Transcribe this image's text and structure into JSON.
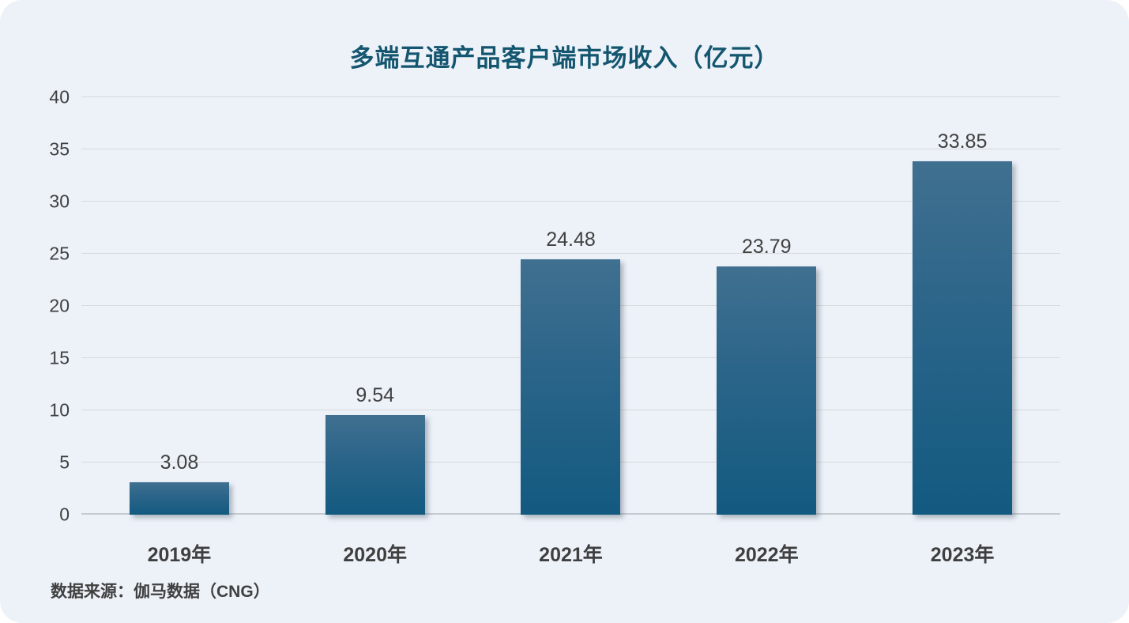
{
  "title": "多端互通产品客户端市场收入（亿元）",
  "source": "数据来源：伽马数据（CNG）",
  "chart_data": {
    "type": "bar",
    "title": "多端互通产品客户端市场收入（亿元）",
    "categories": [
      "2019年",
      "2020年",
      "2021年",
      "2022年",
      "2023年"
    ],
    "values": [
      3.08,
      9.54,
      24.48,
      23.79,
      33.85
    ],
    "data_labels": [
      "3.08",
      "9.54",
      "24.48",
      "23.79",
      "33.85"
    ],
    "xlabel": "",
    "ylabel": "",
    "ylim": [
      0,
      40
    ],
    "yticks": [
      0,
      5,
      10,
      15,
      20,
      25,
      30,
      35,
      40
    ],
    "grid": true,
    "legend": false,
    "source_note": "数据来源：伽马数据（CNG）"
  },
  "colors": {
    "panel_bg": "#edf2f9",
    "title": "#14566f",
    "bar_gradient_top": "#407090",
    "bar_gradient_bottom": "#135a80",
    "gridline": "#d7d9dc",
    "zero_line": "#c6cbd1",
    "tick_label": "#404040",
    "data_label": "#404040",
    "x_label": "#3f3f3f",
    "source": "#404040"
  }
}
